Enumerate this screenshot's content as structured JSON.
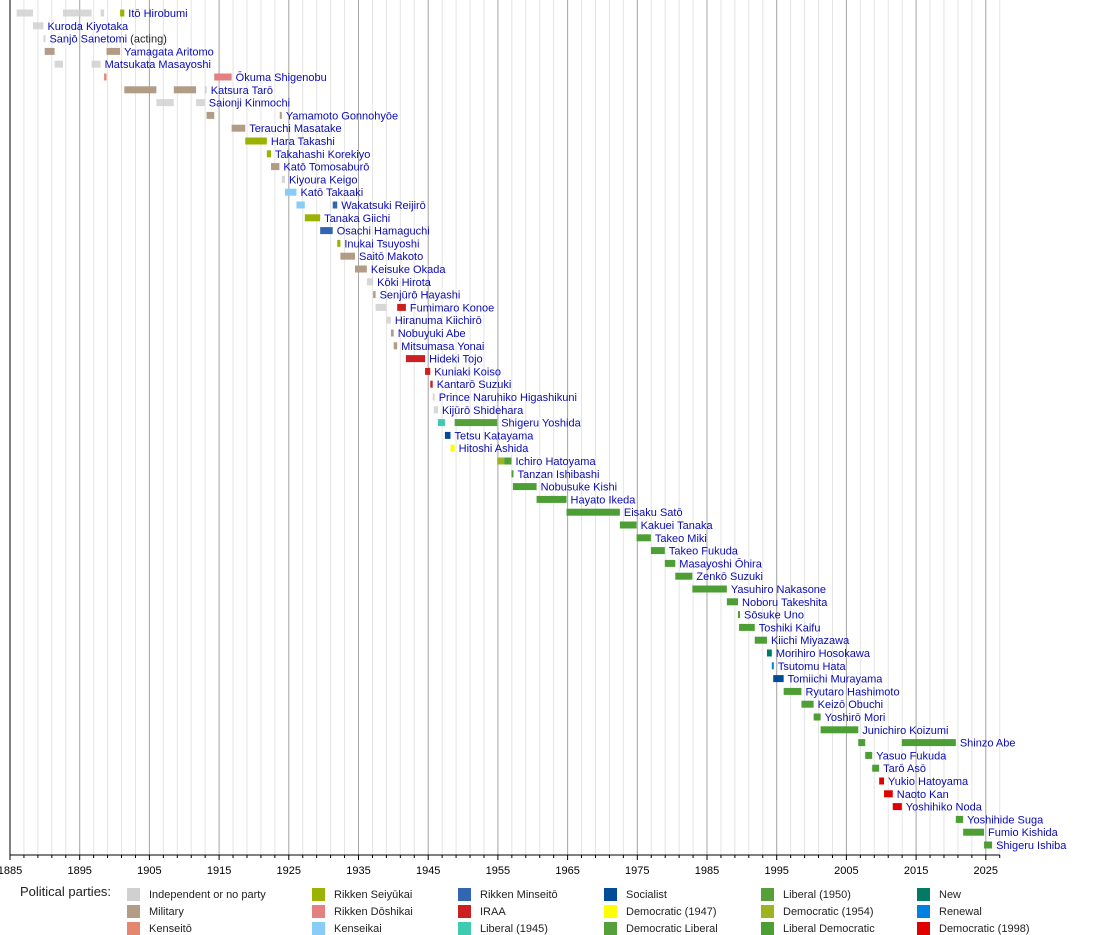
{
  "chart_data": {
    "type": "timeline",
    "xlim": [
      1885,
      2027
    ],
    "ticks": [
      1885,
      1895,
      1905,
      1915,
      1925,
      1935,
      1945,
      1955,
      1965,
      1975,
      1985,
      1995,
      2005,
      2015,
      2025
    ],
    "grid": "major every 10 years, minor every 2 years",
    "legend_title": "Political parties:",
    "parties": [
      {
        "key": "ind",
        "name": "Independent or no party",
        "color": "#d0d0d0"
      },
      {
        "key": "mil",
        "name": "Military",
        "color": "#b39c86"
      },
      {
        "key": "kto",
        "name": "Kenseitō",
        "color": "#e5866e"
      },
      {
        "key": "sei",
        "name": "Rikken Seiyūkai",
        "color": "#99b300"
      },
      {
        "key": "dos",
        "name": "Rikken Dōshikai",
        "color": "#e38080"
      },
      {
        "key": "kai",
        "name": "Kenseikai",
        "color": "#88cdf8"
      },
      {
        "key": "min",
        "name": "Rikken Minseitō",
        "color": "#3366b2"
      },
      {
        "key": "iraa",
        "name": "IRAA",
        "color": "#cc1f1f"
      },
      {
        "key": "lib45",
        "name": "Liberal (1945)",
        "color": "#3ecbb0"
      },
      {
        "key": "soc",
        "name": "Socialist",
        "color": "#004c99"
      },
      {
        "key": "dem47",
        "name": "Democratic (1947)",
        "color": "#ffff00"
      },
      {
        "key": "demlib",
        "name": "Democratic Liberal",
        "color": "#55a03a"
      },
      {
        "key": "lib50",
        "name": "Liberal (1950)",
        "color": "#55a03a"
      },
      {
        "key": "dem54",
        "name": "Democratic (1954)",
        "color": "#9fb321"
      },
      {
        "key": "ldp",
        "name": "Liberal Democratic",
        "color": "#4c9e35"
      },
      {
        "key": "new",
        "name": "New",
        "color": "#007a63"
      },
      {
        "key": "ren",
        "name": "Renewal",
        "color": "#0080e0"
      },
      {
        "key": "dem98",
        "name": "Democratic (1998)",
        "color": "#e00000"
      }
    ],
    "rows": [
      {
        "name": "Itō Hirobumi",
        "terms": [
          [
            1885.95,
            1888.3,
            "ind"
          ],
          [
            1892.6,
            1896.7,
            "ind"
          ],
          [
            1898.0,
            1898.5,
            "ind"
          ],
          [
            1900.8,
            1901.4,
            "sei"
          ]
        ]
      },
      {
        "name": "Kuroda Kiyotaka",
        "terms": [
          [
            1888.3,
            1889.8,
            "ind"
          ]
        ]
      },
      {
        "name": "Sanjō Sanetomi",
        "note": "(acting)",
        "terms": [
          [
            1889.8,
            1889.98,
            "ind"
          ]
        ]
      },
      {
        "name": "Yamagata Aritomo",
        "terms": [
          [
            1889.98,
            1891.4,
            "mil"
          ],
          [
            1898.85,
            1900.8,
            "mil"
          ]
        ]
      },
      {
        "name": "Matsukata Masayoshi",
        "terms": [
          [
            1891.4,
            1892.6,
            "ind"
          ],
          [
            1896.7,
            1898.0,
            "ind"
          ]
        ]
      },
      {
        "name": "Ōkuma Shigenobu",
        "terms": [
          [
            1898.5,
            1898.85,
            "kto"
          ],
          [
            1914.3,
            1916.8,
            "dos"
          ]
        ]
      },
      {
        "name": "Katsura Tarō",
        "terms": [
          [
            1901.4,
            1906.0,
            "mil"
          ],
          [
            1908.5,
            1911.7,
            "mil"
          ],
          [
            1912.95,
            1913.2,
            "ind"
          ]
        ]
      },
      {
        "name": "Saionji Kinmochi",
        "terms": [
          [
            1906.0,
            1908.5,
            "ind"
          ],
          [
            1911.7,
            1912.95,
            "ind"
          ]
        ]
      },
      {
        "name": "Yamamoto Gonnohyōe",
        "terms": [
          [
            1913.2,
            1914.3,
            "mil"
          ],
          [
            1923.7,
            1924.0,
            "mil"
          ]
        ]
      },
      {
        "name": "Terauchi Masatake",
        "terms": [
          [
            1916.8,
            1918.75,
            "mil"
          ]
        ]
      },
      {
        "name": "Hara Takashi",
        "terms": [
          [
            1918.75,
            1921.85,
            "sei"
          ]
        ]
      },
      {
        "name": "Takahashi Korekiyo",
        "terms": [
          [
            1921.85,
            1922.45,
            "sei"
          ]
        ]
      },
      {
        "name": "Katō Tomosaburō",
        "terms": [
          [
            1922.45,
            1923.65,
            "mil"
          ]
        ]
      },
      {
        "name": "Kiyoura Keigo",
        "terms": [
          [
            1924.0,
            1924.45,
            "ind"
          ]
        ]
      },
      {
        "name": "Katō Takaaki",
        "terms": [
          [
            1924.45,
            1926.1,
            "kai"
          ]
        ]
      },
      {
        "name": "Wakatsuki Reijirō",
        "terms": [
          [
            1926.1,
            1927.3,
            "kai"
          ],
          [
            1931.3,
            1931.95,
            "min"
          ]
        ]
      },
      {
        "name": "Tanaka Giichi",
        "terms": [
          [
            1927.3,
            1929.5,
            "sei"
          ]
        ]
      },
      {
        "name": "Osachi Hamaguchi",
        "terms": [
          [
            1929.5,
            1931.3,
            "min"
          ]
        ]
      },
      {
        "name": "Inukai Tsuyoshi",
        "terms": [
          [
            1931.95,
            1932.4,
            "sei"
          ]
        ]
      },
      {
        "name": "Saitō Makoto",
        "terms": [
          [
            1932.4,
            1934.5,
            "mil"
          ]
        ]
      },
      {
        "name": "Keisuke Okada",
        "terms": [
          [
            1934.5,
            1936.2,
            "mil"
          ]
        ]
      },
      {
        "name": "Kōki Hirota",
        "terms": [
          [
            1936.2,
            1937.1,
            "ind"
          ]
        ]
      },
      {
        "name": "Senjūrō Hayashi",
        "terms": [
          [
            1937.1,
            1937.45,
            "mil"
          ]
        ]
      },
      {
        "name": "Fumimaro Konoe",
        "terms": [
          [
            1937.45,
            1939.0,
            "ind"
          ],
          [
            1940.55,
            1941.8,
            "iraa"
          ]
        ]
      },
      {
        "name": "Hiranuma Kiichirō",
        "terms": [
          [
            1939.0,
            1939.65,
            "ind"
          ]
        ]
      },
      {
        "name": "Nobuyuki Abe",
        "terms": [
          [
            1939.65,
            1940.05,
            "mil"
          ]
        ]
      },
      {
        "name": "Mitsumasa Yonai",
        "terms": [
          [
            1940.05,
            1940.55,
            "mil"
          ]
        ]
      },
      {
        "name": "Hideki Tojo",
        "terms": [
          [
            1941.8,
            1944.55,
            "iraa"
          ]
        ]
      },
      {
        "name": "Kuniaki Koiso",
        "terms": [
          [
            1944.55,
            1945.3,
            "iraa"
          ]
        ]
      },
      {
        "name": "Kantarō Suzuki",
        "terms": [
          [
            1945.3,
            1945.65,
            "iraa"
          ]
        ]
      },
      {
        "name": "Prince Naruhiko Higashikuni",
        "terms": [
          [
            1945.65,
            1945.8,
            "ind"
          ]
        ]
      },
      {
        "name": "Kijūrō Shidehara",
        "terms": [
          [
            1945.8,
            1946.4,
            "ind"
          ]
        ]
      },
      {
        "name": "Shigeru Yoshida",
        "terms": [
          [
            1946.4,
            1947.4,
            "lib45"
          ],
          [
            1948.8,
            1954.9,
            "lib50"
          ]
        ]
      },
      {
        "name": "Tetsu Katayama",
        "terms": [
          [
            1947.4,
            1948.2,
            "soc"
          ]
        ]
      },
      {
        "name": "Hitoshi Ashida",
        "terms": [
          [
            1948.2,
            1948.8,
            "dem47"
          ]
        ]
      },
      {
        "name": "Ichiro Hatoyama",
        "terms": [
          [
            1954.9,
            1955.9,
            "dem54"
          ],
          [
            1955.9,
            1956.95,
            "ldp"
          ]
        ]
      },
      {
        "name": "Tanzan Ishibashi",
        "terms": [
          [
            1956.95,
            1957.15,
            "ldp"
          ]
        ]
      },
      {
        "name": "Nobusuke Kishi",
        "terms": [
          [
            1957.15,
            1960.55,
            "ldp"
          ]
        ]
      },
      {
        "name": "Hayato Ikeda",
        "terms": [
          [
            1960.55,
            1964.85,
            "ldp"
          ]
        ]
      },
      {
        "name": "Eisaku Satō",
        "terms": [
          [
            1964.85,
            1972.5,
            "ldp"
          ]
        ]
      },
      {
        "name": "Kakuei Tanaka",
        "terms": [
          [
            1972.5,
            1974.9,
            "ldp"
          ]
        ]
      },
      {
        "name": "Takeo Miki",
        "terms": [
          [
            1974.9,
            1976.95,
            "ldp"
          ]
        ]
      },
      {
        "name": "Takeo Fukuda",
        "terms": [
          [
            1976.95,
            1978.95,
            "ldp"
          ]
        ]
      },
      {
        "name": "Masayoshi Ōhira",
        "terms": [
          [
            1978.95,
            1980.45,
            "ldp"
          ]
        ]
      },
      {
        "name": "Zenkō Suzuki",
        "terms": [
          [
            1980.45,
            1982.9,
            "ldp"
          ]
        ]
      },
      {
        "name": "Yasuhiro Nakasone",
        "terms": [
          [
            1982.9,
            1987.85,
            "ldp"
          ]
        ]
      },
      {
        "name": "Noboru Takeshita",
        "terms": [
          [
            1987.85,
            1989.45,
            "ldp"
          ]
        ]
      },
      {
        "name": "Sōsuke Uno",
        "terms": [
          [
            1989.45,
            1989.6,
            "ldp"
          ]
        ]
      },
      {
        "name": "Toshiki Kaifu",
        "terms": [
          [
            1989.6,
            1991.85,
            "ldp"
          ]
        ]
      },
      {
        "name": "Kiichi Miyazawa",
        "terms": [
          [
            1991.85,
            1993.6,
            "ldp"
          ]
        ]
      },
      {
        "name": "Morihiro Hosokawa",
        "terms": [
          [
            1993.6,
            1994.3,
            "new"
          ]
        ]
      },
      {
        "name": "Tsutomu Hata",
        "terms": [
          [
            1994.3,
            1994.5,
            "ren"
          ]
        ]
      },
      {
        "name": "Tomiichi Murayama",
        "terms": [
          [
            1994.5,
            1996.0,
            "soc"
          ]
        ]
      },
      {
        "name": "Ryutaro Hashimoto",
        "terms": [
          [
            1996.0,
            1998.55,
            "ldp"
          ]
        ]
      },
      {
        "name": "Keizō Obuchi",
        "terms": [
          [
            1998.55,
            2000.3,
            "ldp"
          ]
        ]
      },
      {
        "name": "Yoshirō Mori",
        "terms": [
          [
            2000.3,
            2001.3,
            "ldp"
          ]
        ]
      },
      {
        "name": "Junichiro Koizumi",
        "terms": [
          [
            2001.3,
            2006.7,
            "ldp"
          ]
        ]
      },
      {
        "name": "Shinzo Abe",
        "terms": [
          [
            2006.7,
            2007.7,
            "ldp"
          ],
          [
            2012.95,
            2020.7,
            "ldp"
          ]
        ]
      },
      {
        "name": "Yasuo Fukuda",
        "terms": [
          [
            2007.7,
            2008.7,
            "ldp"
          ]
        ]
      },
      {
        "name": "Tarō Asō",
        "terms": [
          [
            2008.7,
            2009.7,
            "ldp"
          ]
        ]
      },
      {
        "name": "Yukio Hatoyama",
        "terms": [
          [
            2009.7,
            2010.4,
            "dem98"
          ]
        ]
      },
      {
        "name": "Naoto Kan",
        "terms": [
          [
            2010.4,
            2011.65,
            "dem98"
          ]
        ]
      },
      {
        "name": "Yoshihiko Noda",
        "terms": [
          [
            2011.65,
            2012.95,
            "dem98"
          ]
        ]
      },
      {
        "name": "Yoshihide Suga",
        "terms": [
          [
            2020.7,
            2021.75,
            "ldp"
          ]
        ]
      },
      {
        "name": "Fumio Kishida",
        "terms": [
          [
            2021.75,
            2024.75,
            "ldp"
          ]
        ]
      },
      {
        "name": "Shigeru Ishiba",
        "terms": [
          [
            2024.75,
            2025.9,
            "ldp"
          ]
        ]
      }
    ]
  }
}
